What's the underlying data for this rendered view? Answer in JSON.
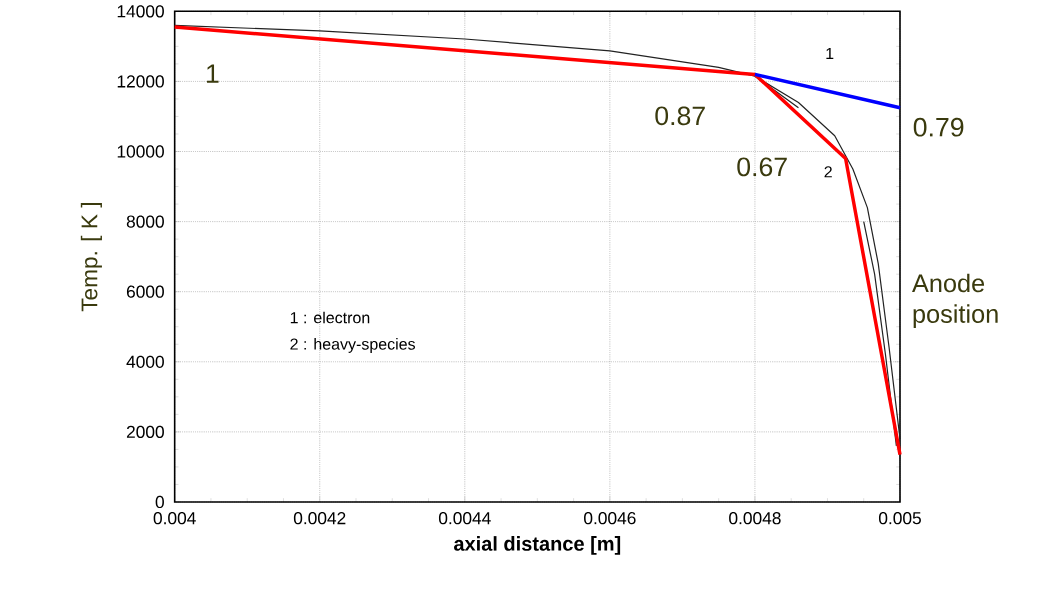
{
  "chart_data": {
    "type": "line",
    "xlabel": "axial  distance  [m]",
    "ylabel": "Temp. [ K ]",
    "xlim": [
      0.004,
      0.005
    ],
    "ylim": [
      0,
      14000
    ],
    "xticks": [
      0.004,
      0.0042,
      0.0044,
      0.0046,
      0.0048,
      0.005
    ],
    "yticks": [
      0,
      2000,
      4000,
      6000,
      8000,
      10000,
      12000,
      14000
    ],
    "grid": true,
    "line_style": "solid",
    "marker": "none",
    "series": [
      {
        "color": "#222222",
        "x": [
          0.004,
          0.0042,
          0.0044,
          0.0046,
          0.00475,
          0.0048,
          0.00486,
          0.00491,
          0.004935,
          0.004955,
          0.00497,
          0.004985,
          0.005
        ],
        "values": [
          13600,
          13440,
          13210,
          12870,
          12400,
          12150,
          11400,
          10450,
          9500,
          8400,
          6800,
          4400,
          1800
        ]
      },
      {
        "color": "#222222",
        "x": [
          0.0048,
          0.00486,
          0.0049,
          0.00493,
          0.00495,
          0.004965,
          0.00498,
          0.004995
        ],
        "values": [
          12150,
          11250,
          null,
          null,
          8000,
          6500,
          4200,
          1600
        ]
      },
      {
        "color": "#ff0000",
        "x": [
          0.004,
          0.0048,
          0.004925,
          0.005
        ],
        "values": [
          13550,
          12200,
          9800,
          1350
        ]
      },
      {
        "color": "#0000ff",
        "x": [
          0.0048,
          0.005
        ],
        "values": [
          12200,
          11250
        ]
      }
    ],
    "annotations": [
      "1",
      "0.87",
      "0.67",
      {
        "text": "0.79",
        "x": 0.005,
        "y": 11250
      },
      "1",
      "2",
      "1 : electron",
      "2 : heavy-species",
      "Anode position"
    ]
  }
}
